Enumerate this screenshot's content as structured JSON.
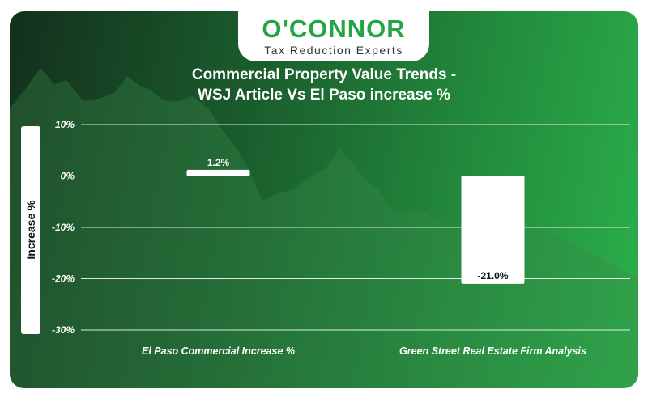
{
  "logo": {
    "name": "O'CONNOR",
    "tagline": "Tax Reduction Experts"
  },
  "colors": {
    "brand_green": "#22a447",
    "bar_fill": "#ffffff",
    "grid": "#ffffff"
  },
  "chart_data": {
    "type": "bar",
    "title_line1": "Commercial Property Value Trends -",
    "title_line2": "WSJ Article Vs El Paso increase %",
    "ylabel": "Increase %",
    "xlabel": "",
    "categories": [
      "El Paso Commercial Increase %",
      "Green Street Real Estate Firm Analysis"
    ],
    "values": [
      1.2,
      -21.0
    ],
    "data_labels": [
      "1.2%",
      "-21.0%"
    ],
    "ylim": [
      -30,
      10
    ],
    "yticks": [
      10,
      0,
      -10,
      -20,
      -30
    ],
    "ytick_labels": [
      "10%",
      "0%",
      "-10%",
      "-20%",
      "-30%"
    ],
    "grid": true,
    "legend": "none"
  }
}
